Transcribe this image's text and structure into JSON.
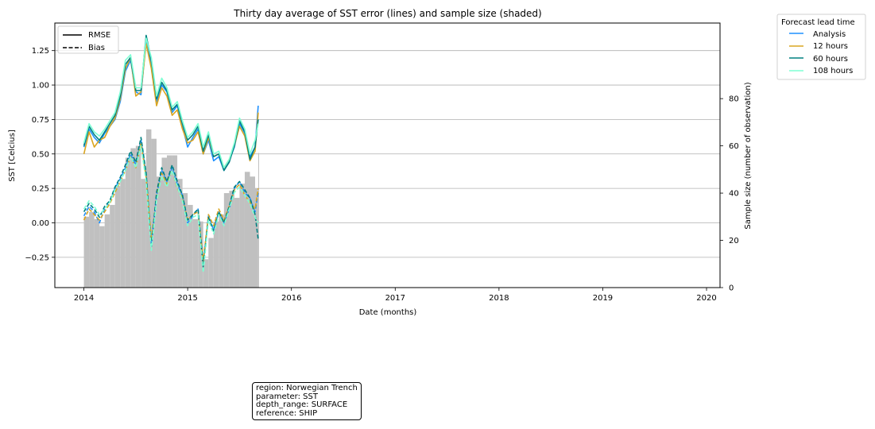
{
  "chart_data": {
    "type": "line",
    "title": "Thirty day average of SST error (lines) and sample size (shaded)",
    "xlabel": "Date (months)",
    "ylabel": "SST [Celcius]",
    "y2label": "Sample size (number of observation)",
    "xlim": [
      2013.72,
      2020.13
    ],
    "ylim": [
      -0.47,
      1.45
    ],
    "y2lim": [
      0,
      112
    ],
    "x_ticks": [
      2014,
      2015,
      2016,
      2017,
      2018,
      2019,
      2020
    ],
    "x_tick_labels": [
      "2014",
      "2015",
      "2016",
      "2017",
      "2018",
      "2019",
      "2020"
    ],
    "y_ticks": [
      -0.25,
      0.0,
      0.25,
      0.5,
      0.75,
      1.0,
      1.25
    ],
    "y_tick_labels": [
      "−0.25",
      "0.00",
      "0.25",
      "0.50",
      "0.75",
      "1.00",
      "1.25"
    ],
    "y2_ticks": [
      0,
      20,
      40,
      60,
      80
    ],
    "y2_tick_labels": [
      "0",
      "20",
      "40",
      "60",
      "80"
    ],
    "grid": "horizontal",
    "style_legend": {
      "position": "top-left",
      "entries": [
        {
          "label": "RMSE",
          "style": "solid"
        },
        {
          "label": "Bias",
          "style": "dashed"
        }
      ]
    },
    "series_legend": {
      "title": "Forecast lead time",
      "position": "outside top-right"
    },
    "series": [
      {
        "name": "Analysis",
        "color": "#1e90ff",
        "rmse_x": [
          2014.0,
          2014.05,
          2014.1,
          2014.15,
          2014.2,
          2014.25,
          2014.3,
          2014.35,
          2014.4,
          2014.45,
          2014.5,
          2014.55,
          2014.6,
          2014.65,
          2014.7,
          2014.75,
          2014.8,
          2014.85,
          2014.9,
          2014.95,
          2015.0,
          2015.05,
          2015.1,
          2015.15,
          2015.2,
          2015.25,
          2015.3,
          2015.35,
          2015.4,
          2015.45,
          2015.5,
          2015.55,
          2015.6,
          2015.65,
          2015.68
        ],
        "rmse_y": [
          0.55,
          0.68,
          0.62,
          0.58,
          0.65,
          0.7,
          0.75,
          0.88,
          1.1,
          1.18,
          0.95,
          0.93,
          1.33,
          1.15,
          0.88,
          1.0,
          0.95,
          0.8,
          0.85,
          0.7,
          0.55,
          0.62,
          0.68,
          0.5,
          0.6,
          0.45,
          0.48,
          0.38,
          0.45,
          0.55,
          0.72,
          0.65,
          0.48,
          0.55,
          0.85
        ],
        "bias_x": [
          2014.0,
          2014.05,
          2014.1,
          2014.15,
          2014.2,
          2014.25,
          2014.3,
          2014.35,
          2014.4,
          2014.45,
          2014.5,
          2014.55,
          2014.6,
          2014.65,
          2014.7,
          2014.75,
          2014.8,
          2014.85,
          2014.9,
          2014.95,
          2015.0,
          2015.05,
          2015.1,
          2015.15,
          2015.2,
          2015.25,
          2015.3,
          2015.35,
          2015.4,
          2015.45,
          2015.5,
          2015.55,
          2015.6,
          2015.65,
          2015.68
        ],
        "bias_y": [
          0.05,
          0.12,
          0.08,
          0.0,
          0.1,
          0.15,
          0.25,
          0.32,
          0.4,
          0.5,
          0.42,
          0.6,
          0.35,
          -0.15,
          0.2,
          0.38,
          0.3,
          0.4,
          0.28,
          0.2,
          0.0,
          0.05,
          0.1,
          -0.3,
          0.05,
          -0.05,
          0.08,
          0.0,
          0.1,
          0.25,
          0.3,
          0.22,
          0.18,
          0.08,
          0.22
        ]
      },
      {
        "name": "12 hours",
        "color": "#daa520",
        "rmse_x": [
          2014.0,
          2014.05,
          2014.1,
          2014.15,
          2014.2,
          2014.25,
          2014.3,
          2014.35,
          2014.4,
          2014.45,
          2014.5,
          2014.55,
          2014.6,
          2014.65,
          2014.7,
          2014.75,
          2014.8,
          2014.85,
          2014.9,
          2014.95,
          2015.0,
          2015.05,
          2015.1,
          2015.15,
          2015.2,
          2015.25,
          2015.3,
          2015.35,
          2015.4,
          2015.45,
          2015.5,
          2015.55,
          2015.6,
          2015.65,
          2015.68
        ],
        "rmse_y": [
          0.5,
          0.66,
          0.55,
          0.6,
          0.62,
          0.7,
          0.76,
          0.9,
          1.12,
          1.2,
          0.92,
          0.95,
          1.3,
          1.12,
          0.85,
          0.98,
          0.92,
          0.78,
          0.82,
          0.68,
          0.58,
          0.6,
          0.66,
          0.5,
          0.62,
          0.48,
          0.5,
          0.4,
          0.46,
          0.56,
          0.7,
          0.63,
          0.45,
          0.52,
          0.8
        ],
        "bias_x": [
          2014.0,
          2014.05,
          2014.1,
          2014.15,
          2014.2,
          2014.25,
          2014.3,
          2014.35,
          2014.4,
          2014.45,
          2014.5,
          2014.55,
          2014.6,
          2014.65,
          2014.7,
          2014.75,
          2014.8,
          2014.85,
          2014.9,
          2014.95,
          2015.0,
          2015.05,
          2015.1,
          2015.15,
          2015.2,
          2015.25,
          2015.3,
          2015.35,
          2015.4,
          2015.45,
          2015.5,
          2015.55,
          2015.6,
          2015.65,
          2015.68
        ],
        "bias_y": [
          0.02,
          0.1,
          0.06,
          0.02,
          0.08,
          0.14,
          0.22,
          0.3,
          0.38,
          0.48,
          0.4,
          0.58,
          0.33,
          -0.12,
          0.18,
          0.36,
          0.28,
          0.38,
          0.25,
          0.18,
          0.02,
          0.06,
          0.08,
          -0.28,
          0.06,
          -0.02,
          0.1,
          0.02,
          0.12,
          0.24,
          0.28,
          0.2,
          0.15,
          0.1,
          0.25
        ]
      },
      {
        "name": "60 hours",
        "color": "#008080",
        "rmse_x": [
          2014.0,
          2014.05,
          2014.1,
          2014.15,
          2014.2,
          2014.25,
          2014.3,
          2014.35,
          2014.4,
          2014.45,
          2014.5,
          2014.55,
          2014.6,
          2014.65,
          2014.7,
          2014.75,
          2014.8,
          2014.85,
          2014.9,
          2014.95,
          2015.0,
          2015.05,
          2015.1,
          2015.15,
          2015.2,
          2015.25,
          2015.3,
          2015.35,
          2015.4,
          2015.45,
          2015.5,
          2015.55,
          2015.6,
          2015.65,
          2015.68
        ],
        "rmse_y": [
          0.56,
          0.7,
          0.64,
          0.6,
          0.66,
          0.72,
          0.78,
          0.92,
          1.15,
          1.2,
          0.96,
          0.96,
          1.36,
          1.18,
          0.9,
          1.02,
          0.96,
          0.82,
          0.86,
          0.72,
          0.6,
          0.64,
          0.7,
          0.52,
          0.64,
          0.48,
          0.5,
          0.38,
          0.44,
          0.56,
          0.74,
          0.66,
          0.46,
          0.55,
          0.75
        ],
        "bias_x": [
          2014.0,
          2014.05,
          2014.1,
          2014.15,
          2014.2,
          2014.25,
          2014.3,
          2014.35,
          2014.4,
          2014.45,
          2014.5,
          2014.55,
          2014.6,
          2014.65,
          2014.7,
          2014.75,
          2014.8,
          2014.85,
          2014.9,
          2014.95,
          2015.0,
          2015.05,
          2015.1,
          2015.15,
          2015.2,
          2015.25,
          2015.3,
          2015.35,
          2015.4,
          2015.45,
          2015.5,
          2015.55,
          2015.6,
          2015.65,
          2015.68
        ],
        "bias_y": [
          0.08,
          0.14,
          0.1,
          0.04,
          0.12,
          0.16,
          0.26,
          0.33,
          0.42,
          0.52,
          0.44,
          0.62,
          0.36,
          -0.18,
          0.22,
          0.4,
          0.3,
          0.42,
          0.3,
          0.2,
          0.02,
          0.06,
          0.1,
          -0.32,
          0.04,
          -0.06,
          0.08,
          0.0,
          0.12,
          0.26,
          0.3,
          0.24,
          0.18,
          0.06,
          -0.12
        ]
      },
      {
        "name": "108 hours",
        "color": "#7fffd4",
        "rmse_x": [
          2014.0,
          2014.05,
          2014.1,
          2014.15,
          2014.2,
          2014.25,
          2014.3,
          2014.35,
          2014.4,
          2014.45,
          2014.5,
          2014.55,
          2014.6,
          2014.65,
          2014.7,
          2014.75,
          2014.8,
          2014.85,
          2014.9,
          2014.95,
          2015.0,
          2015.05,
          2015.1,
          2015.15,
          2015.2,
          2015.25,
          2015.3,
          2015.35,
          2015.4,
          2015.45,
          2015.5,
          2015.55,
          2015.6,
          2015.65,
          2015.68
        ],
        "rmse_y": [
          0.58,
          0.72,
          0.66,
          0.63,
          0.68,
          0.74,
          0.8,
          0.95,
          1.18,
          1.22,
          0.98,
          0.98,
          1.34,
          1.2,
          0.92,
          1.05,
          0.98,
          0.84,
          0.88,
          0.74,
          0.62,
          0.66,
          0.72,
          0.55,
          0.66,
          0.5,
          0.52,
          0.4,
          0.46,
          0.58,
          0.76,
          0.68,
          0.5,
          0.6,
          0.72
        ],
        "bias_x": [
          2014.0,
          2014.05,
          2014.1,
          2014.15,
          2014.2,
          2014.25,
          2014.3,
          2014.35,
          2014.4,
          2014.45,
          2014.5,
          2014.55,
          2014.6,
          2014.65,
          2014.7,
          2014.75,
          2014.8,
          2014.85,
          2014.9,
          2014.95,
          2015.0,
          2015.05,
          2015.1,
          2015.15,
          2015.2,
          2015.25,
          2015.3,
          2015.35,
          2015.4,
          2015.45,
          2015.5,
          2015.55,
          2015.6,
          2015.65,
          2015.68
        ],
        "bias_y": [
          0.1,
          0.16,
          0.12,
          0.06,
          0.1,
          0.15,
          0.24,
          0.3,
          0.38,
          0.48,
          0.4,
          0.56,
          0.3,
          -0.2,
          0.16,
          0.34,
          0.26,
          0.38,
          0.26,
          0.16,
          -0.02,
          0.04,
          0.06,
          -0.36,
          0.02,
          -0.08,
          0.06,
          -0.02,
          0.1,
          0.22,
          0.26,
          0.2,
          0.14,
          0.04,
          0.0
        ]
      }
    ],
    "sample_size": {
      "color": "#c0c0c0",
      "x": [
        2014.0,
        2014.05,
        2014.1,
        2014.15,
        2014.2,
        2014.25,
        2014.3,
        2014.35,
        2014.4,
        2014.45,
        2014.5,
        2014.55,
        2014.6,
        2014.65,
        2014.7,
        2014.75,
        2014.8,
        2014.85,
        2014.9,
        2014.95,
        2015.0,
        2015.05,
        2015.1,
        2015.15,
        2015.2,
        2015.25,
        2015.3,
        2015.35,
        2015.4,
        2015.45,
        2015.5,
        2015.55,
        2015.6,
        2015.65,
        2015.68
      ],
      "values": [
        30,
        32,
        29,
        26,
        31,
        35,
        43,
        46,
        55,
        59,
        60,
        46,
        67,
        63,
        47,
        55,
        56,
        56,
        46,
        40,
        35,
        29,
        28,
        12,
        21,
        28,
        31,
        40,
        41,
        38,
        44,
        49,
        47,
        42,
        57
      ]
    }
  },
  "info_box": {
    "lines": [
      "region: Norwegian Trench",
      "parameter: SST",
      "depth_range: SURFACE",
      "reference: SHIP"
    ]
  }
}
